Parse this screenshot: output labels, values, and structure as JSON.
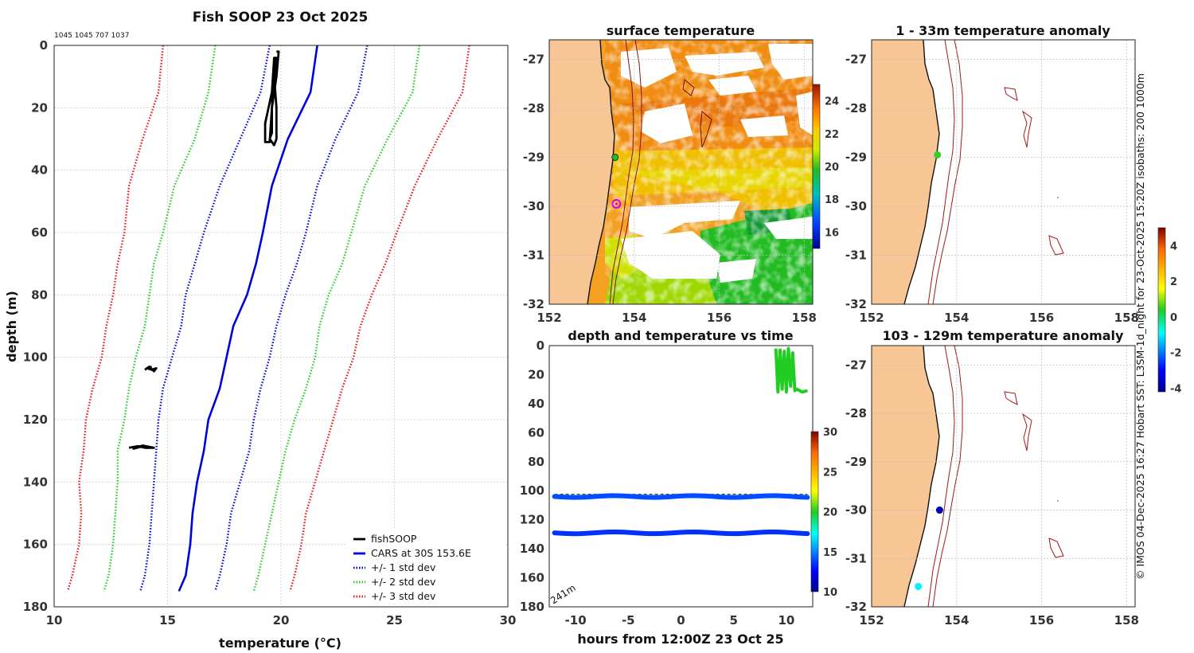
{
  "chart_data": [
    {
      "id": "profile",
      "type": "line",
      "title": "Fish SOOP 23 Oct 2025",
      "counts_label": "1045 1045 707 1037",
      "xlabel": "temperature (°C)",
      "ylabel": "depth (m)",
      "xlim": [
        10,
        30
      ],
      "ylim": [
        0,
        180
      ],
      "xticks": [
        "10",
        "15",
        "20",
        "25",
        "30"
      ],
      "yticks": [
        "0",
        "20",
        "40",
        "60",
        "80",
        "100",
        "120",
        "140",
        "160",
        "180"
      ],
      "legend_position": "bottom-right",
      "series": [
        {
          "name": "CARS at 30S 153.6E",
          "color": "#0000dd",
          "style": "solid",
          "points": [
            [
              21.6,
              0
            ],
            [
              21.3,
              15
            ],
            [
              20.3,
              30
            ],
            [
              19.6,
              45
            ],
            [
              19.2,
              60
            ],
            [
              18.9,
              70
            ],
            [
              18.5,
              80
            ],
            [
              17.9,
              90
            ],
            [
              17.6,
              100
            ],
            [
              17.3,
              110
            ],
            [
              16.8,
              120
            ],
            [
              16.6,
              130
            ],
            [
              16.3,
              140
            ],
            [
              16.1,
              150
            ],
            [
              16.0,
              160
            ],
            [
              15.8,
              170
            ],
            [
              15.5,
              175
            ]
          ]
        },
        {
          "name": "+/- 1 std dev",
          "color": "#0000dd",
          "style": "dotted",
          "points": [
            [
              19.5,
              0
            ],
            [
              19.1,
              15
            ],
            [
              18.2,
              30
            ],
            [
              17.3,
              45
            ],
            [
              16.6,
              60
            ],
            [
              16.2,
              70
            ],
            [
              15.8,
              80
            ],
            [
              15.6,
              90
            ],
            [
              15.2,
              100
            ],
            [
              14.8,
              110
            ],
            [
              14.6,
              120
            ],
            [
              14.5,
              130
            ],
            [
              14.4,
              140
            ],
            [
              14.3,
              150
            ],
            [
              14.2,
              160
            ],
            [
              14.0,
              170
            ],
            [
              13.8,
              175
            ]
          ]
        },
        {
          "name": "+/- 1 std dev",
          "color": "#0000dd",
          "style": "dotted",
          "points": [
            [
              23.8,
              0
            ],
            [
              23.4,
              15
            ],
            [
              22.4,
              30
            ],
            [
              21.6,
              45
            ],
            [
              21.1,
              60
            ],
            [
              20.7,
              70
            ],
            [
              20.2,
              80
            ],
            [
              19.8,
              90
            ],
            [
              19.5,
              100
            ],
            [
              19.1,
              110
            ],
            [
              18.8,
              120
            ],
            [
              18.6,
              130
            ],
            [
              18.2,
              140
            ],
            [
              17.8,
              150
            ],
            [
              17.6,
              160
            ],
            [
              17.3,
              170
            ],
            [
              17.1,
              175
            ]
          ]
        },
        {
          "name": "+/- 2 std dev",
          "color": "#22cc22",
          "style": "dotted",
          "points": [
            [
              17.1,
              0
            ],
            [
              16.8,
              15
            ],
            [
              16.2,
              30
            ],
            [
              15.3,
              45
            ],
            [
              14.8,
              60
            ],
            [
              14.4,
              70
            ],
            [
              14.2,
              80
            ],
            [
              14.0,
              90
            ],
            [
              13.6,
              100
            ],
            [
              13.3,
              110
            ],
            [
              13.1,
              120
            ],
            [
              12.8,
              130
            ],
            [
              12.8,
              140
            ],
            [
              12.7,
              150
            ],
            [
              12.6,
              160
            ],
            [
              12.4,
              170
            ],
            [
              12.2,
              175
            ]
          ]
        },
        {
          "name": "+/- 2 std dev",
          "color": "#22cc22",
          "style": "dotted",
          "points": [
            [
              26.1,
              0
            ],
            [
              25.8,
              15
            ],
            [
              24.7,
              30
            ],
            [
              23.7,
              45
            ],
            [
              23.1,
              60
            ],
            [
              22.7,
              70
            ],
            [
              22.1,
              80
            ],
            [
              21.7,
              90
            ],
            [
              21.5,
              100
            ],
            [
              21.1,
              110
            ],
            [
              20.6,
              120
            ],
            [
              20.2,
              130
            ],
            [
              19.9,
              140
            ],
            [
              19.6,
              150
            ],
            [
              19.3,
              160
            ],
            [
              19.0,
              170
            ],
            [
              18.8,
              175
            ]
          ]
        },
        {
          "name": "+/- 3 std dev",
          "color": "#ee1111",
          "style": "dotted",
          "points": [
            [
              14.8,
              0
            ],
            [
              14.6,
              15
            ],
            [
              13.9,
              30
            ],
            [
              13.3,
              45
            ],
            [
              13.1,
              60
            ],
            [
              12.8,
              70
            ],
            [
              12.6,
              80
            ],
            [
              12.3,
              90
            ],
            [
              12.1,
              100
            ],
            [
              11.7,
              110
            ],
            [
              11.4,
              120
            ],
            [
              11.3,
              130
            ],
            [
              11.1,
              140
            ],
            [
              11.2,
              150
            ],
            [
              11.1,
              160
            ],
            [
              10.8,
              170
            ],
            [
              10.6,
              175
            ]
          ]
        },
        {
          "name": "+/- 3 std dev",
          "color": "#ee1111",
          "style": "dotted",
          "points": [
            [
              28.3,
              0
            ],
            [
              28.0,
              15
            ],
            [
              26.9,
              30
            ],
            [
              25.9,
              45
            ],
            [
              25.1,
              60
            ],
            [
              24.6,
              70
            ],
            [
              24.0,
              80
            ],
            [
              23.5,
              90
            ],
            [
              23.2,
              100
            ],
            [
              22.7,
              110
            ],
            [
              22.3,
              120
            ],
            [
              21.9,
              130
            ],
            [
              21.5,
              140
            ],
            [
              21.1,
              150
            ],
            [
              20.9,
              160
            ],
            [
              20.6,
              170
            ],
            [
              20.4,
              175
            ]
          ]
        }
      ],
      "fishsoop": [
        {
          "name": "fishSOOP",
          "color": "#000000",
          "points": [
            [
              19.8,
              2
            ],
            [
              19.9,
              2
            ],
            [
              19.8,
              10
            ],
            [
              19.6,
              20
            ],
            [
              19.6,
              28
            ],
            [
              19.5,
              30
            ],
            [
              19.7,
              32
            ],
            [
              19.8,
              30
            ],
            [
              19.8,
              20
            ],
            [
              19.7,
              10
            ],
            [
              19.8,
              4
            ],
            [
              19.7,
              4
            ],
            [
              19.6,
              15
            ],
            [
              19.3,
              25
            ],
            [
              19.3,
              31
            ],
            [
              19.5,
              31
            ],
            [
              19.6,
              20
            ],
            [
              19.7,
              8
            ]
          ]
        },
        {
          "name": "fishSOOP",
          "color": "#000000",
          "points": [
            [
              14.0,
              104
            ],
            [
              14.2,
              103
            ],
            [
              14.4,
              104.5
            ],
            [
              14.5,
              103.5
            ],
            [
              14.3,
              104
            ],
            [
              14.1,
              103.5
            ],
            [
              14.3,
              103
            ]
          ]
        },
        {
          "name": "fishSOOP",
          "color": "#000000",
          "points": [
            [
              13.3,
              129
            ],
            [
              13.7,
              128.5
            ],
            [
              14.0,
              129
            ],
            [
              14.4,
              129
            ],
            [
              13.9,
              128.3
            ],
            [
              13.5,
              129.3
            ],
            [
              13.8,
              128.7
            ]
          ]
        }
      ],
      "legend": [
        {
          "label": "fishSOOP",
          "color": "#000000",
          "style": "solid"
        },
        {
          "label": "CARS at 30S 153.6E",
          "color": "#0000dd",
          "style": "solid"
        },
        {
          "label": "+/- 1 std dev",
          "color": "#0000dd",
          "style": "dotted"
        },
        {
          "label": "+/- 2 std dev",
          "color": "#22cc22",
          "style": "dotted"
        },
        {
          "label": "+/- 3 std dev",
          "color": "#ee1111",
          "style": "dotted"
        }
      ]
    },
    {
      "id": "sst_map",
      "type": "heatmap",
      "title": "surface temperature",
      "xlim": [
        152,
        158.2
      ],
      "ylim": [
        -32,
        -26.6
      ],
      "xticks": [
        "152",
        "154",
        "156",
        "158"
      ],
      "yticks": [
        "-27",
        "-28",
        "-29",
        "-30",
        "-31",
        "-32"
      ],
      "colorbar_range": [
        15,
        25
      ],
      "colorbar_ticks": [
        "16",
        "18",
        "20",
        "22",
        "24"
      ],
      "markers": [
        {
          "name": "fishsoop-position",
          "lon": 153.58,
          "lat": -29.95,
          "color": "#dd00dd"
        },
        {
          "name": "station-marker",
          "lon": 153.55,
          "lat": -29.0,
          "color": "#22bb22"
        }
      ]
    },
    {
      "id": "depth_time",
      "type": "scatter",
      "title": "depth and temperature vs time",
      "xlabel": "hours from 12:00Z 23 Oct 25",
      "xlim": [
        -12.5,
        12.5
      ],
      "ylim": [
        0,
        180
      ],
      "xticks": [
        "-10",
        "-5",
        "0",
        "5",
        "10"
      ],
      "yticks": [
        "0",
        "20",
        "40",
        "60",
        "80",
        "100",
        "120",
        "140",
        "160",
        "180"
      ],
      "colorbar_range": [
        10,
        30
      ],
      "colorbar_ticks": [
        "10",
        "15",
        "20",
        "25",
        "30"
      ],
      "bottom_depth_label": "241m",
      "series": [
        {
          "name": "surface-track",
          "temperature": 20.0,
          "points": [
            [
              9.0,
              2
            ],
            [
              9.2,
              32
            ],
            [
              9.4,
              3
            ],
            [
              9.6,
              30
            ],
            [
              9.8,
              4
            ],
            [
              10.0,
              32
            ],
            [
              10.2,
              2
            ],
            [
              10.4,
              28
            ],
            [
              10.6,
              5
            ],
            [
              10.8,
              31
            ],
            [
              11.0,
              30
            ],
            [
              11.5,
              32
            ],
            [
              12.0,
              31
            ]
          ]
        },
        {
          "name": "mid-logger",
          "temperature": 14.0,
          "depth": 104,
          "x_range": [
            -12,
            12
          ]
        },
        {
          "name": "deep-logger",
          "temperature": 13.5,
          "depth": 129,
          "x_range": [
            -12,
            12
          ]
        }
      ],
      "reference_line": {
        "depth": 102.5
      }
    },
    {
      "id": "anom_shallow",
      "type": "scatter",
      "title": "1 - 33m temperature anomaly",
      "xlim": [
        152,
        158.2
      ],
      "ylim": [
        -32,
        -26.6
      ],
      "xticks": [
        "152",
        "154",
        "156",
        "158"
      ],
      "yticks": [
        "-27",
        "-28",
        "-29",
        "-30",
        "-31",
        "-32"
      ],
      "points": [
        {
          "lon": 153.55,
          "lat": -28.95,
          "anomaly": 0.5
        }
      ]
    },
    {
      "id": "anom_deep",
      "type": "scatter",
      "title": "103 - 129m temperature anomaly",
      "xlim": [
        152,
        158.2
      ],
      "ylim": [
        -32,
        -26.6
      ],
      "xticks": [
        "152",
        "154",
        "156",
        "158"
      ],
      "yticks": [
        "-27",
        "-28",
        "-29",
        "-30",
        "-31",
        "-32"
      ],
      "points": [
        {
          "lon": 153.6,
          "lat": -30.0,
          "anomaly": -3.8
        },
        {
          "lon": 153.1,
          "lat": -31.58,
          "anomaly": -1.0
        }
      ],
      "colorbar_range": [
        -4.2,
        5
      ],
      "colorbar_ticks": [
        "-4",
        "-2",
        "0",
        "2",
        "4"
      ]
    }
  ],
  "credit": "© IMOS 04-Dec-2025 16:27 Hobart SST: L3SM-1d_night for 23-Oct-2025 15:20Z isobaths: 200  1000m",
  "colors": {
    "land": "#f8c595",
    "coast": "#111111",
    "isobath": "#b02020",
    "grid": "#cccccc"
  }
}
